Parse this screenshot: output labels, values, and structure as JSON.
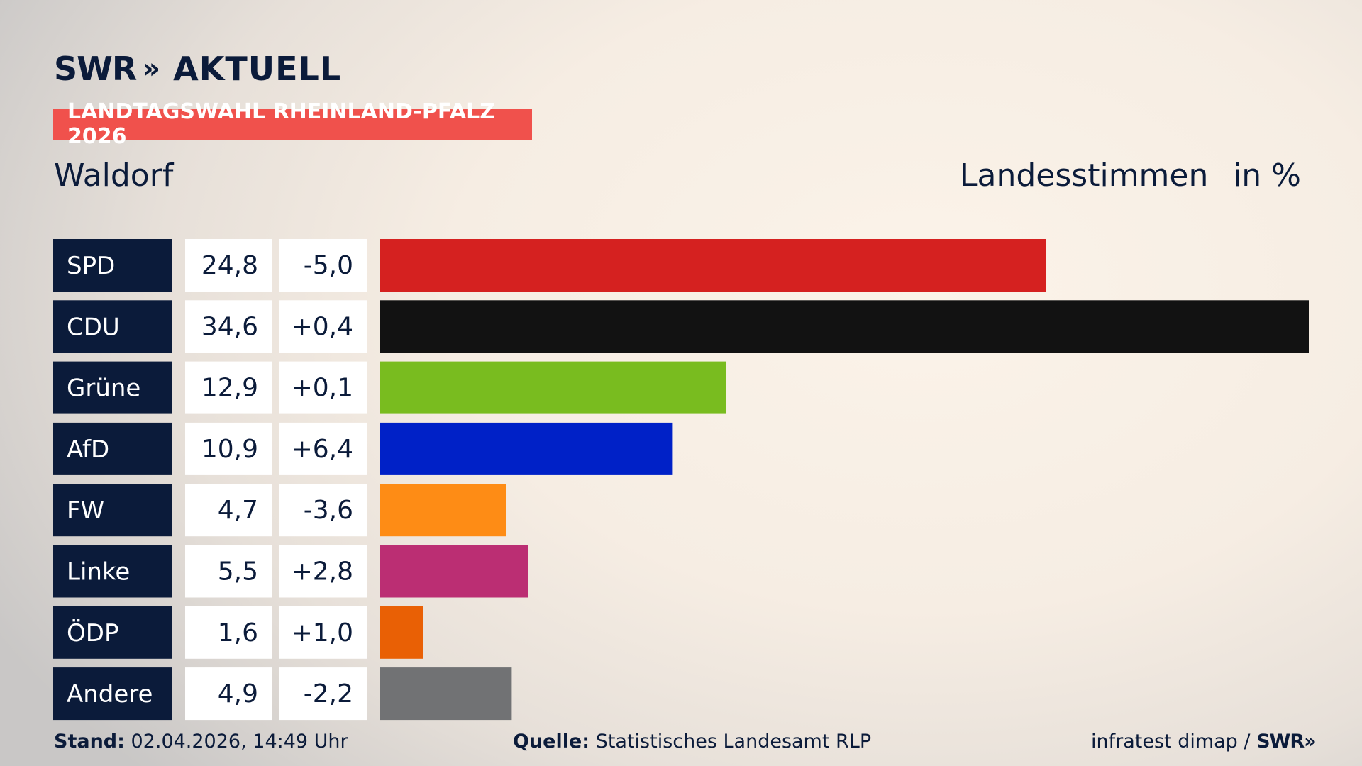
{
  "header": {
    "logo_swr": "SWR",
    "logo_arrows": "»",
    "logo_aktuell": "AKTUELL",
    "banner": "LANDTAGSWAHL RHEINLAND-PFALZ 2026",
    "district": "Waldorf",
    "metric": "Landesstimmen",
    "unit": "in %"
  },
  "colors": {
    "label_bg": "#0b1b3a",
    "banner": "#f0514c"
  },
  "chart_data": {
    "type": "bar",
    "orientation": "horizontal",
    "categories": [
      "SPD",
      "CDU",
      "Grüne",
      "AfD",
      "FW",
      "Linke",
      "ÖDP",
      "Andere"
    ],
    "values": [
      24.8,
      34.6,
      12.9,
      10.9,
      4.7,
      5.5,
      1.6,
      4.9
    ],
    "value_labels": [
      "24,8",
      "34,6",
      "12,9",
      "10,9",
      "4,7",
      "5,5",
      "1,6",
      "4,9"
    ],
    "change_labels": [
      "-5,0",
      "+0,4",
      "+0,1",
      "+6,4",
      "-3,6",
      "+2,8",
      "+1,0",
      "-2,2"
    ],
    "changes": [
      -5.0,
      0.4,
      0.1,
      6.4,
      -3.6,
      2.8,
      1.0,
      -2.2
    ],
    "colors": [
      "#d52120",
      "#121212",
      "#79bc1f",
      "#0021c7",
      "#fe8c15",
      "#bb2e73",
      "#e96005",
      "#717274"
    ],
    "xlim": [
      0,
      34.6
    ]
  },
  "footer": {
    "stand_label": "Stand:",
    "stand_value": " 02.04.2026, 14:49 Uhr",
    "source_label": "Quelle:",
    "source_value": " Statistisches Landesamt RLP",
    "credit": "infratest dimap / ",
    "credit_logo": "SWR»"
  }
}
